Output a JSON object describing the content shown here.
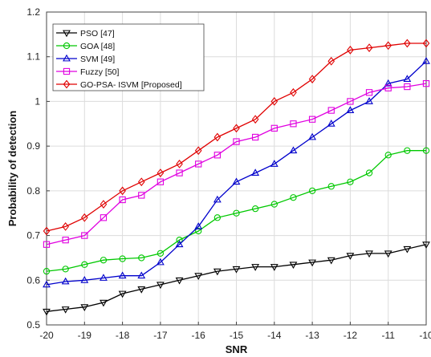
{
  "chart_data": {
    "type": "line",
    "xlabel": "SNR",
    "ylabel": "Probability of detection",
    "xlim": [
      -20,
      -10
    ],
    "ylim": [
      0.5,
      1.2
    ],
    "xticks": [
      -20,
      -19,
      -18,
      -17,
      -16,
      -15,
      -14,
      -13,
      -12,
      -11,
      -10
    ],
    "yticks": [
      0.5,
      0.6,
      0.7,
      0.8,
      0.9,
      1,
      1.1,
      1.2
    ],
    "grid": true,
    "legend_position": "top-left",
    "x": [
      -20,
      -19.5,
      -19,
      -18.5,
      -18,
      -17.5,
      -17,
      -16.5,
      -16,
      -15.5,
      -15,
      -14.5,
      -14,
      -13.5,
      -13,
      -12.5,
      -12,
      -11.5,
      -11,
      -10.5,
      -10
    ],
    "series": [
      {
        "name": "PSO [47]",
        "color": "#000000",
        "marker": "triangle-down",
        "values": [
          0.53,
          0.535,
          0.54,
          0.55,
          0.57,
          0.58,
          0.59,
          0.6,
          0.61,
          0.62,
          0.625,
          0.63,
          0.63,
          0.635,
          0.64,
          0.645,
          0.655,
          0.66,
          0.66,
          0.67,
          0.68
        ]
      },
      {
        "name": "GOA [48]",
        "color": "#00c800",
        "marker": "circle",
        "values": [
          0.62,
          0.625,
          0.635,
          0.645,
          0.648,
          0.65,
          0.66,
          0.69,
          0.71,
          0.74,
          0.75,
          0.76,
          0.77,
          0.785,
          0.8,
          0.81,
          0.82,
          0.84,
          0.88,
          0.89,
          0.89
        ]
      },
      {
        "name": "SVM [49]",
        "color": "#0000cc",
        "marker": "triangle-up",
        "values": [
          0.59,
          0.597,
          0.6,
          0.605,
          0.61,
          0.61,
          0.64,
          0.68,
          0.72,
          0.78,
          0.82,
          0.84,
          0.86,
          0.89,
          0.92,
          0.95,
          0.98,
          1.0,
          1.04,
          1.05,
          1.09
        ]
      },
      {
        "name": "Fuzzy [50]",
        "color": "#e000e0",
        "marker": "square",
        "values": [
          0.68,
          0.69,
          0.7,
          0.74,
          0.78,
          0.79,
          0.82,
          0.84,
          0.86,
          0.88,
          0.91,
          0.92,
          0.94,
          0.95,
          0.96,
          0.98,
          1.0,
          1.02,
          1.03,
          1.033,
          1.04
        ]
      },
      {
        "name": "GO-PSA- ISVM [Proposed]",
        "color": "#e00000",
        "marker": "diamond",
        "values": [
          0.71,
          0.72,
          0.74,
          0.77,
          0.8,
          0.82,
          0.84,
          0.86,
          0.89,
          0.92,
          0.94,
          0.96,
          1.0,
          1.02,
          1.05,
          1.09,
          1.115,
          1.12,
          1.125,
          1.13,
          1.13
        ]
      }
    ]
  }
}
